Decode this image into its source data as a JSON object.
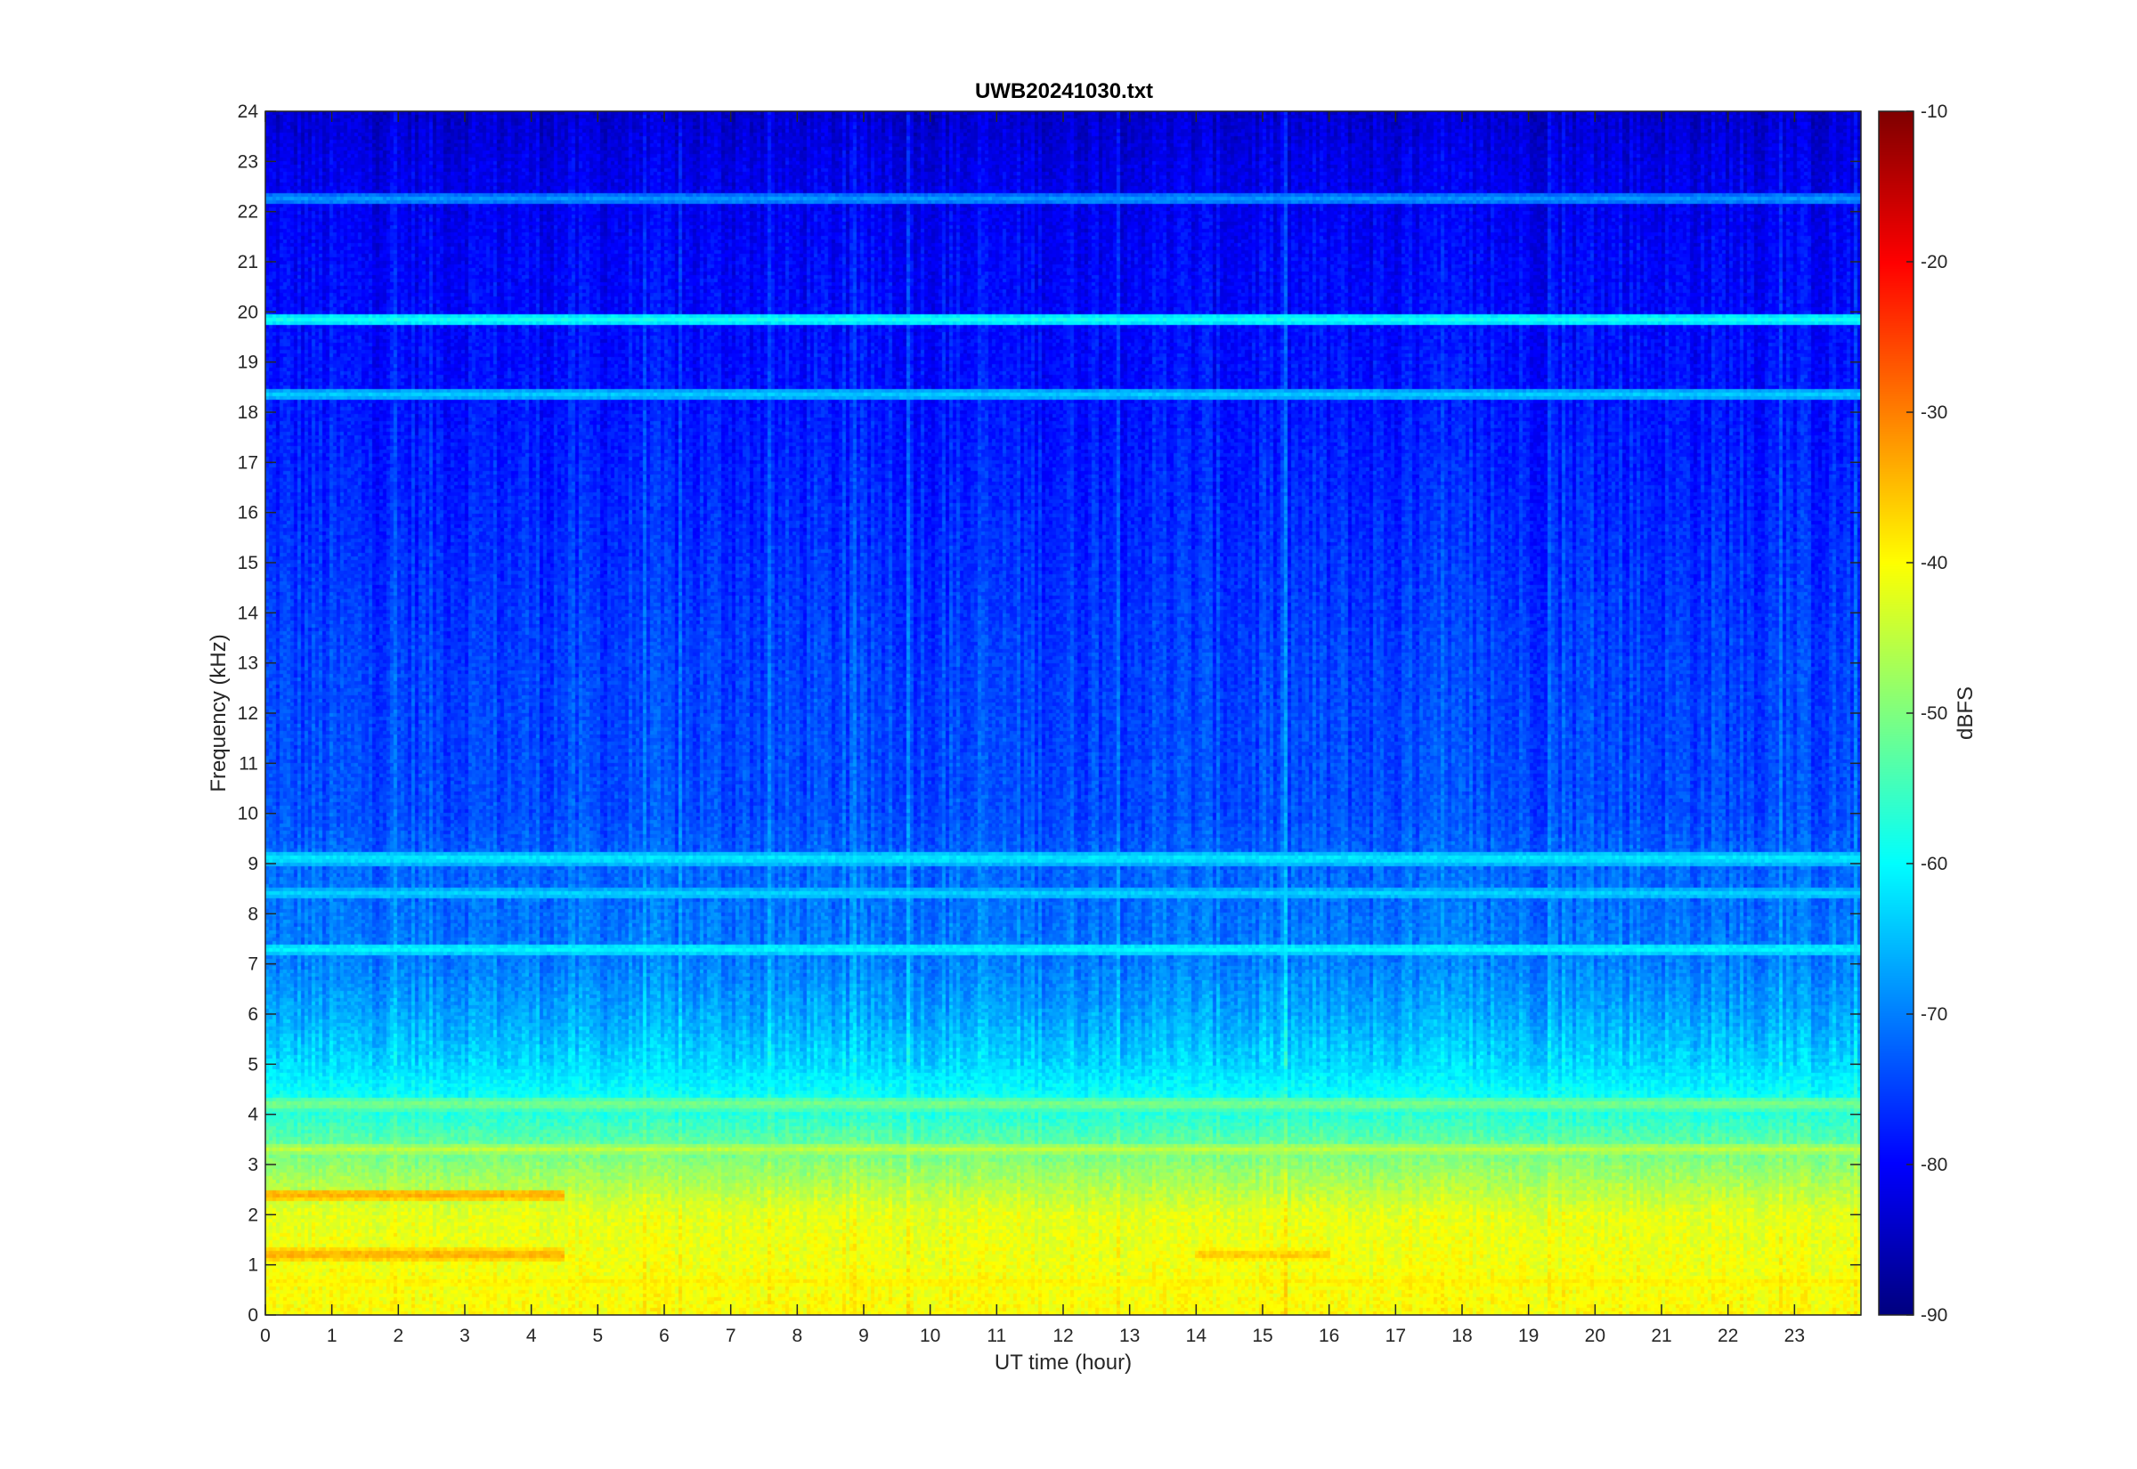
{
  "chart_data": {
    "type": "heatmap",
    "title": "UWB20241030.txt",
    "xlabel": "UT time (hour)",
    "ylabel": "Frequency (kHz)",
    "xlim": [
      0,
      24
    ],
    "ylim": [
      0,
      24
    ],
    "x_ticks": [
      "0",
      "1",
      "2",
      "3",
      "4",
      "5",
      "6",
      "7",
      "8",
      "9",
      "10",
      "11",
      "12",
      "13",
      "14",
      "15",
      "16",
      "17",
      "18",
      "19",
      "20",
      "21",
      "22",
      "23"
    ],
    "y_ticks": [
      "0",
      "1",
      "2",
      "3",
      "4",
      "5",
      "6",
      "7",
      "8",
      "9",
      "10",
      "11",
      "12",
      "13",
      "14",
      "15",
      "16",
      "17",
      "18",
      "19",
      "20",
      "21",
      "22",
      "23",
      "24"
    ],
    "colorbar": {
      "label": "dBFS",
      "range": [
        -90,
        -10
      ],
      "ticks": [
        "-10",
        "-20",
        "-30",
        "-40",
        "-50",
        "-60",
        "-70",
        "-80",
        "-90"
      ],
      "colormap": "jet"
    },
    "background_level_profile": [
      {
        "freq_khz": 0,
        "dbfs": -40
      },
      {
        "freq_khz": 1,
        "dbfs": -41
      },
      {
        "freq_khz": 2,
        "dbfs": -42
      },
      {
        "freq_khz": 3,
        "dbfs": -49
      },
      {
        "freq_khz": 4,
        "dbfs": -57
      },
      {
        "freq_khz": 5,
        "dbfs": -63
      },
      {
        "freq_khz": 6,
        "dbfs": -67
      },
      {
        "freq_khz": 7,
        "dbfs": -70
      },
      {
        "freq_khz": 8,
        "dbfs": -71
      },
      {
        "freq_khz": 9,
        "dbfs": -72
      },
      {
        "freq_khz": 10,
        "dbfs": -74
      },
      {
        "freq_khz": 13,
        "dbfs": -75
      },
      {
        "freq_khz": 16,
        "dbfs": -77
      },
      {
        "freq_khz": 19,
        "dbfs": -79
      },
      {
        "freq_khz": 21,
        "dbfs": -80
      },
      {
        "freq_khz": 22,
        "dbfs": -81
      },
      {
        "freq_khz": 23,
        "dbfs": -82
      },
      {
        "freq_khz": 24,
        "dbfs": -84
      }
    ],
    "narrowband_lines": [
      {
        "freq_khz": 19.85,
        "dbfs": -59,
        "t_start": 0,
        "t_end": 24
      },
      {
        "freq_khz": 18.35,
        "dbfs": -64,
        "t_start": 0,
        "t_end": 24
      },
      {
        "freq_khz": 22.25,
        "dbfs": -68,
        "t_start": 0,
        "t_end": 24
      },
      {
        "freq_khz": 9.1,
        "dbfs": -61,
        "t_start": 0,
        "t_end": 24
      },
      {
        "freq_khz": 7.3,
        "dbfs": -60,
        "t_start": 0,
        "t_end": 24
      },
      {
        "freq_khz": 8.4,
        "dbfs": -63,
        "t_start": 0,
        "t_end": 24
      },
      {
        "freq_khz": 4.2,
        "dbfs": -50,
        "t_start": 0,
        "t_end": 24
      },
      {
        "freq_khz": 3.3,
        "dbfs": -45,
        "t_start": 0,
        "t_end": 24
      },
      {
        "freq_khz": 2.4,
        "dbfs": -33,
        "t_start": 0,
        "t_end": 4.5
      },
      {
        "freq_khz": 1.2,
        "dbfs": -33,
        "t_start": 0,
        "t_end": 4.5
      },
      {
        "freq_khz": 1.2,
        "dbfs": -35,
        "t_start": 14,
        "t_end": 16
      },
      {
        "freq_khz": 0.65,
        "dbfs": -38,
        "t_start": 0,
        "t_end": 24
      }
    ]
  }
}
